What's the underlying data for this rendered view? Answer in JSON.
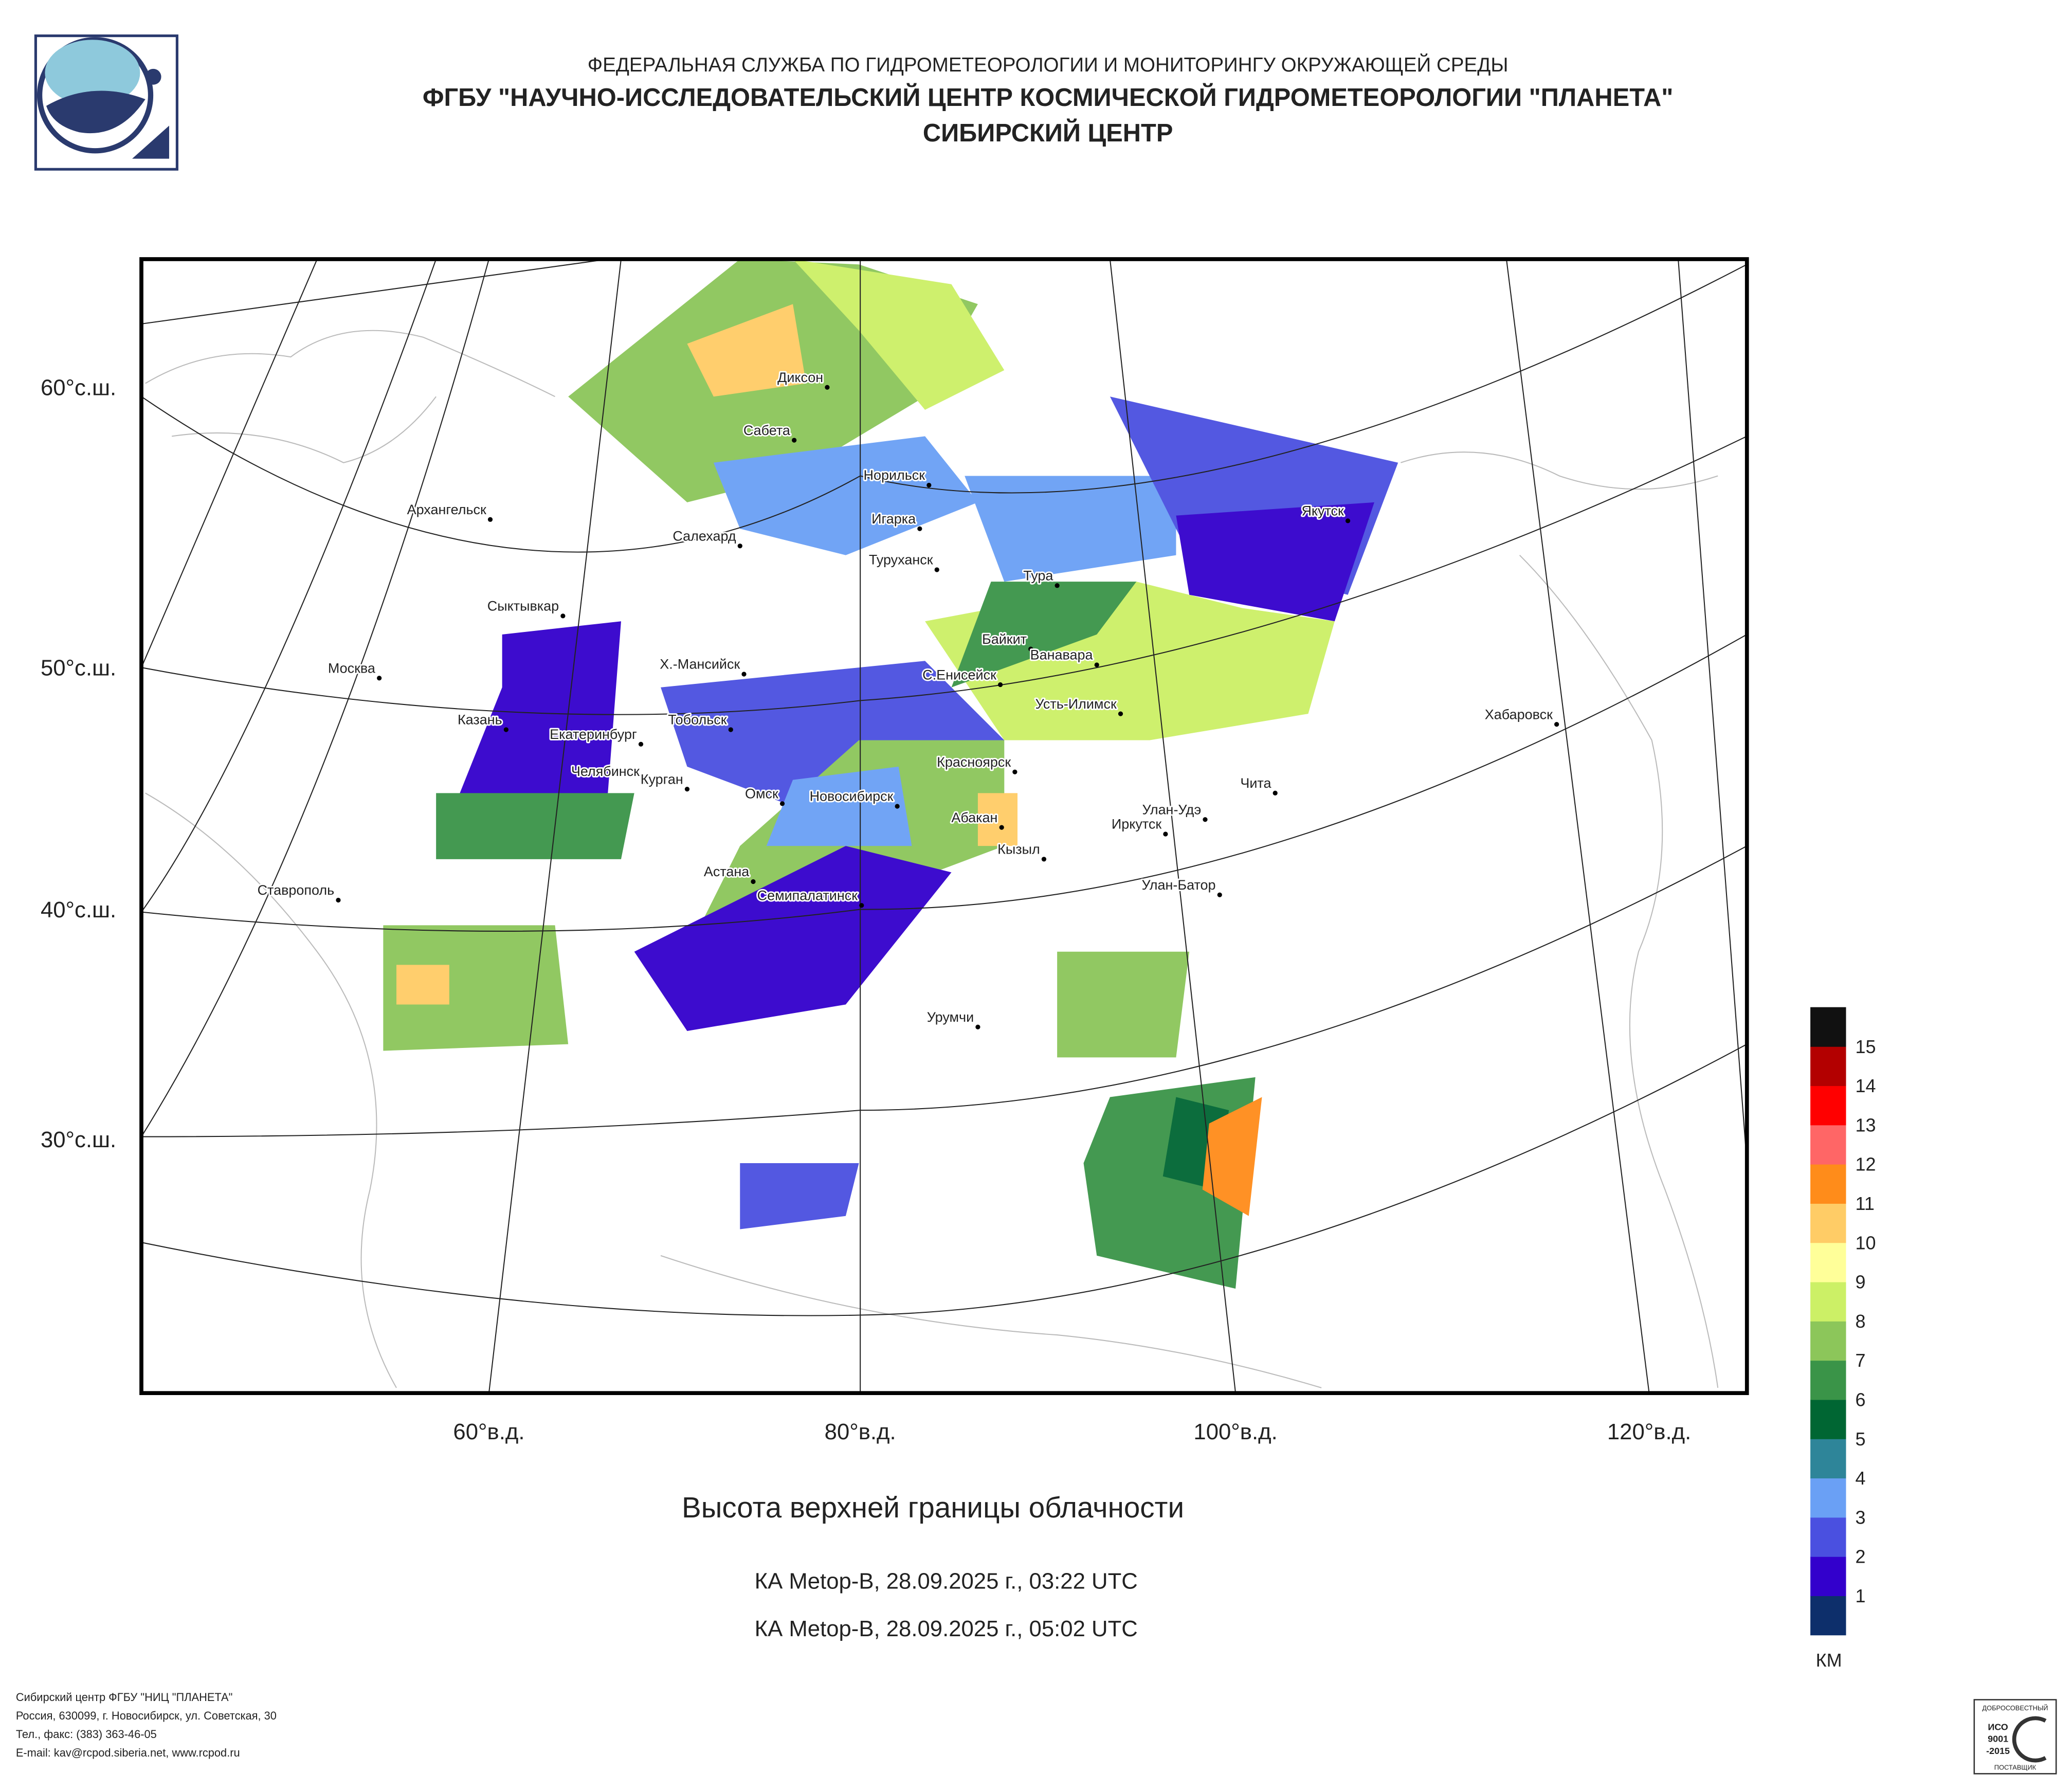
{
  "header": {
    "agency": "ФЕДЕРАЛЬНАЯ СЛУЖБА ПО ГИДРОМЕТЕОРОЛОГИИ И МОНИТОРИНГУ ОКРУЖАЮЩЕЙ СРЕДЫ",
    "org": "ФГБУ \"НАУЧНО-ИССЛЕДОВАТЕЛЬСКИЙ ЦЕНТР КОСМИЧЕСКОЙ ГИДРОМЕТЕОРОЛОГИИ \"ПЛАНЕТА\"",
    "center": "СИБИРСКИЙ ЦЕНТР"
  },
  "map": {
    "lat_labels": [
      "60°с.ш.",
      "50°с.ш.",
      "40°с.ш.",
      "30°с.ш."
    ],
    "lon_labels": [
      "60°в.д.",
      "80°в.д.",
      "100°в.д.",
      "120°в.д."
    ],
    "cities": [
      "Диксон",
      "Сабета",
      "Норильск",
      "Игарка",
      "Салехард",
      "Туруханск",
      "Архангельск",
      "Якутск",
      "Тура",
      "Сыктывкар",
      "Байкит",
      "Ванавара",
      "Х.-Мансийск",
      "С.Енисейск",
      "Москва",
      "Усть-Илимск",
      "Хабаровск",
      "Казань",
      "Тобольск",
      "Екатеринбург",
      "Красноярск",
      "Челябинск",
      "Чита",
      "Курган",
      "Омск",
      "Новосибирск",
      "Абакан",
      "Улан-Удэ",
      "Иркутск",
      "Кызыл",
      "Астана",
      "Ставрополь",
      "Улан-Батор",
      "Семипалатинск",
      "Урумчи"
    ]
  },
  "legend": {
    "labels": [
      "1",
      "2",
      "3",
      "4",
      "5",
      "6",
      "7",
      "8",
      "9",
      "10",
      "11",
      "12",
      "13",
      "14",
      "15"
    ],
    "colors": [
      "#0d2f6b",
      "#3300cc",
      "#4a50e0",
      "#6aa0f5",
      "#2e8599",
      "#006633",
      "#3a9448",
      "#8cc65a",
      "#ccf066",
      "#ffff99",
      "#ffcc66",
      "#ff8c1a",
      "#ff6666",
      "#ff0000",
      "#b30000",
      "#111111"
    ],
    "unit": "КМ"
  },
  "caption": {
    "title": "Высота верхней границы облачности",
    "passes": [
      "КА Metop-B, 28.09.2025 г., 03:22 UTC",
      "КА Metop-B, 28.09.2025 г., 05:02 UTC"
    ]
  },
  "footer": {
    "lines": [
      "Сибирский центр ФГБУ \"НИЦ \"ПЛАНЕТА\"",
      "Россия, 630099, г. Новосибирск, ул. Советская, 30",
      "Тел., факс: (383) 363-46-05",
      "E-mail: kav@rcpod.siberia.net, www.rcpod.ru"
    ]
  },
  "certificate": {
    "top": "ДОБРОСОВЕСТНЫЙ",
    "iso": "ИСО",
    "number": "9001",
    "year": "-2015",
    "bottom": "ПОСТАВЩИК"
  }
}
